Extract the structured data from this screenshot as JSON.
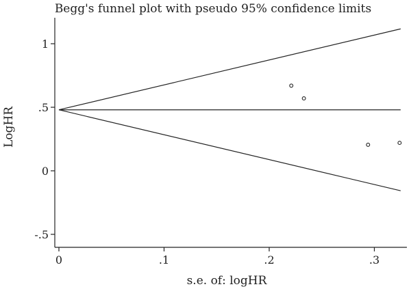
{
  "chart_data": {
    "type": "scatter",
    "title": "Begg's funnel plot with pseudo 95% confidence limits",
    "xlabel": "s.e. of: logHR",
    "ylabel": "LogHR",
    "xlim": [
      0,
      0.325
    ],
    "ylim": [
      -0.5,
      1.1
    ],
    "x_ticks": [
      0,
      0.1,
      0.2,
      0.3
    ],
    "x_tick_labels": [
      "0",
      ".1",
      ".2",
      ".3"
    ],
    "y_ticks": [
      -0.5,
      0,
      0.5,
      1
    ],
    "y_tick_labels": [
      "-.5",
      "0",
      ".5",
      "1"
    ],
    "pooled_estimate": 0.48,
    "pseudo_ci_upper": {
      "x": [
        0,
        0.325
      ],
      "y": [
        0.48,
        1.117
      ]
    },
    "pseudo_ci_lower": {
      "x": [
        0,
        0.325
      ],
      "y": [
        0.48,
        -0.157
      ]
    },
    "points": [
      {
        "x": 0.221,
        "y": 0.67
      },
      {
        "x": 0.233,
        "y": 0.57
      },
      {
        "x": 0.294,
        "y": 0.205
      },
      {
        "x": 0.324,
        "y": 0.22
      }
    ],
    "grid": false,
    "legend": "none"
  }
}
